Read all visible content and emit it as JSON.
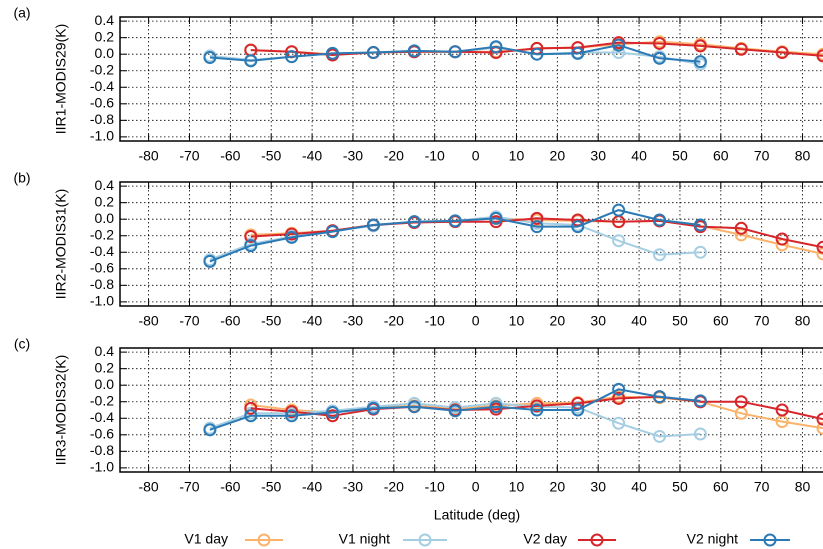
{
  "chart_data": [
    {
      "type": "line",
      "label": "(a)",
      "y_label": "IIR1-MODIS29(K)",
      "x": [
        -65,
        -55,
        -45,
        -35,
        -25,
        -15,
        -5,
        5,
        15,
        25,
        35,
        45,
        55,
        65,
        75,
        85
      ],
      "xlim": [
        -87,
        85
      ],
      "xticks": [
        -80,
        -70,
        -60,
        -50,
        -40,
        -30,
        -20,
        -10,
        0,
        10,
        20,
        30,
        40,
        50,
        60,
        70,
        80
      ],
      "ylim": [
        -1.05,
        0.45
      ],
      "yticks": [
        0.4,
        0.2,
        {
          "value": 0,
          "label": "0.0"
        },
        -0.2,
        -0.4,
        -0.6,
        -0.8,
        {
          "value": -1,
          "label": "-1.0"
        }
      ],
      "grid": true,
      "series": [
        {
          "name": "V1 day",
          "color": "#fbb36b",
          "values": [
            null,
            0.05,
            0.03,
            0.0,
            0.02,
            0.03,
            0.03,
            0.03,
            0.07,
            0.08,
            0.12,
            0.15,
            0.12,
            0.07,
            0.03,
            0.0
          ]
        },
        {
          "name": "V1 night",
          "color": "#a6cee3",
          "values": [
            -0.02,
            -0.07,
            -0.03,
            0.01,
            0.02,
            0.04,
            0.03,
            0.08,
            0.0,
            0.02,
            0.02,
            -0.03,
            -0.12,
            null,
            null,
            null
          ]
        },
        {
          "name": "V2 day",
          "color": "#d7262b",
          "values": [
            null,
            0.05,
            0.03,
            -0.01,
            0.02,
            0.03,
            0.03,
            0.02,
            0.07,
            0.08,
            0.14,
            0.13,
            0.1,
            0.06,
            0.02,
            -0.02
          ]
        },
        {
          "name": "V2 night",
          "color": "#2b7ab5",
          "values": [
            -0.04,
            -0.08,
            -0.03,
            0.01,
            0.02,
            0.04,
            0.03,
            0.09,
            0.0,
            0.01,
            0.11,
            -0.05,
            -0.09,
            null,
            null,
            null
          ]
        }
      ]
    },
    {
      "type": "line",
      "label": "(b)",
      "y_label": "IIR2-MODIS31(K)",
      "x": [
        -65,
        -55,
        -45,
        -35,
        -25,
        -15,
        -5,
        5,
        15,
        25,
        35,
        45,
        55,
        65,
        75,
        85
      ],
      "xlim": [
        -87,
        85
      ],
      "xticks": [
        -80,
        -70,
        -60,
        -50,
        -40,
        -30,
        -20,
        -10,
        0,
        10,
        20,
        30,
        40,
        50,
        60,
        70,
        80
      ],
      "ylim": [
        -1.05,
        0.45
      ],
      "yticks": [
        0.4,
        0.2,
        {
          "value": 0,
          "label": "0.0"
        },
        -0.2,
        -0.4,
        -0.6,
        -0.8,
        {
          "value": -1,
          "label": "-1.0"
        }
      ],
      "grid": true,
      "series": [
        {
          "name": "V1 day",
          "color": "#fbb36b",
          "values": [
            null,
            -0.19,
            -0.17,
            -0.14,
            -0.07,
            -0.04,
            -0.02,
            0.01,
            -0.01,
            -0.02,
            -0.03,
            -0.02,
            -0.08,
            -0.19,
            -0.31,
            -0.42
          ]
        },
        {
          "name": "V1 night",
          "color": "#a6cee3",
          "values": [
            -0.49,
            -0.3,
            -0.21,
            -0.14,
            -0.08,
            -0.03,
            -0.02,
            0.03,
            -0.05,
            -0.07,
            -0.26,
            -0.43,
            -0.4,
            null,
            null,
            null
          ]
        },
        {
          "name": "V2 day",
          "color": "#d7262b",
          "values": [
            null,
            -0.21,
            -0.18,
            -0.14,
            -0.07,
            -0.04,
            -0.03,
            -0.03,
            0.01,
            -0.01,
            -0.03,
            -0.02,
            -0.09,
            -0.11,
            -0.24,
            -0.34
          ]
        },
        {
          "name": "V2 night",
          "color": "#2b7ab5",
          "values": [
            -0.51,
            -0.32,
            -0.22,
            -0.15,
            -0.07,
            -0.03,
            -0.02,
            0.01,
            -0.09,
            -0.09,
            0.11,
            -0.01,
            -0.07,
            null,
            null,
            null
          ]
        }
      ]
    },
    {
      "type": "line",
      "label": "(c)",
      "y_label": "IIR3-MODIS32(K)",
      "x_label": "Latitude (deg)",
      "x": [
        -65,
        -55,
        -45,
        -35,
        -25,
        -15,
        -5,
        5,
        15,
        25,
        35,
        45,
        55,
        65,
        75,
        85
      ],
      "xlim": [
        -87,
        85
      ],
      "xticks": [
        -80,
        -70,
        -60,
        -50,
        -40,
        -30,
        -20,
        -10,
        0,
        10,
        20,
        30,
        40,
        50,
        60,
        70,
        80
      ],
      "ylim": [
        -1.05,
        0.45
      ],
      "yticks": [
        0.4,
        0.2,
        {
          "value": 0,
          "label": "0.0"
        },
        -0.2,
        -0.4,
        -0.6,
        -0.8,
        {
          "value": -1,
          "label": "-1.0"
        }
      ],
      "grid": true,
      "series": [
        {
          "name": "V1 day",
          "color": "#fbb36b",
          "values": [
            null,
            -0.24,
            -0.3,
            -0.33,
            -0.27,
            -0.25,
            -0.28,
            -0.25,
            -0.22,
            -0.21,
            -0.14,
            -0.15,
            -0.2,
            -0.34,
            -0.44,
            -0.52
          ]
        },
        {
          "name": "V1 night",
          "color": "#a6cee3",
          "values": [
            -0.52,
            -0.34,
            -0.34,
            -0.31,
            -0.26,
            -0.22,
            -0.27,
            -0.22,
            -0.26,
            -0.27,
            -0.46,
            -0.62,
            -0.59,
            null,
            null,
            null
          ]
        },
        {
          "name": "V2 day",
          "color": "#d7262b",
          "values": [
            null,
            -0.28,
            -0.32,
            -0.37,
            -0.29,
            -0.26,
            -0.3,
            -0.29,
            -0.25,
            -0.22,
            -0.16,
            -0.14,
            -0.2,
            -0.2,
            -0.3,
            -0.41
          ]
        },
        {
          "name": "V2 night",
          "color": "#2b7ab5",
          "values": [
            -0.54,
            -0.37,
            -0.37,
            -0.33,
            -0.28,
            -0.26,
            -0.31,
            -0.26,
            -0.3,
            -0.3,
            -0.05,
            -0.14,
            -0.19,
            null,
            null,
            null
          ]
        }
      ]
    }
  ]
}
